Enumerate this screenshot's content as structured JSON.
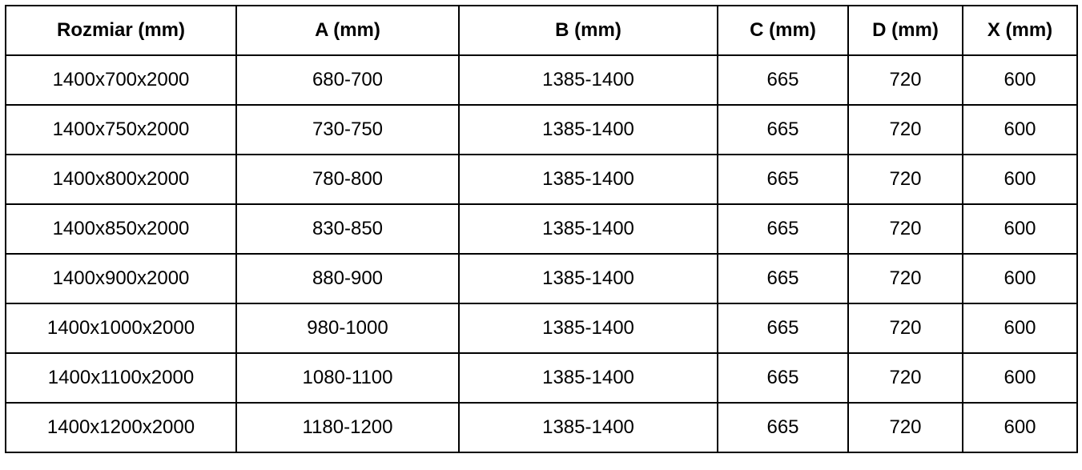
{
  "table": {
    "headers": [
      "Rozmiar (mm)",
      "A (mm)",
      "B (mm)",
      "C (mm)",
      "D (mm)",
      "X (mm)"
    ],
    "rows": [
      [
        "1400x700x2000",
        "680-700",
        "1385-1400",
        "665",
        "720",
        "600"
      ],
      [
        "1400x750x2000",
        "730-750",
        "1385-1400",
        "665",
        "720",
        "600"
      ],
      [
        "1400x800x2000",
        "780-800",
        "1385-1400",
        "665",
        "720",
        "600"
      ],
      [
        "1400x850x2000",
        "830-850",
        "1385-1400",
        "665",
        "720",
        "600"
      ],
      [
        "1400x900x2000",
        "880-900",
        "1385-1400",
        "665",
        "720",
        "600"
      ],
      [
        "1400x1000x2000",
        "980-1000",
        "1385-1400",
        "665",
        "720",
        "600"
      ],
      [
        "1400x1100x2000",
        "1080-1100",
        "1385-1400",
        "665",
        "720",
        "600"
      ],
      [
        "1400x1200x2000",
        "1180-1200",
        "1385-1400",
        "665",
        "720",
        "600"
      ]
    ]
  }
}
